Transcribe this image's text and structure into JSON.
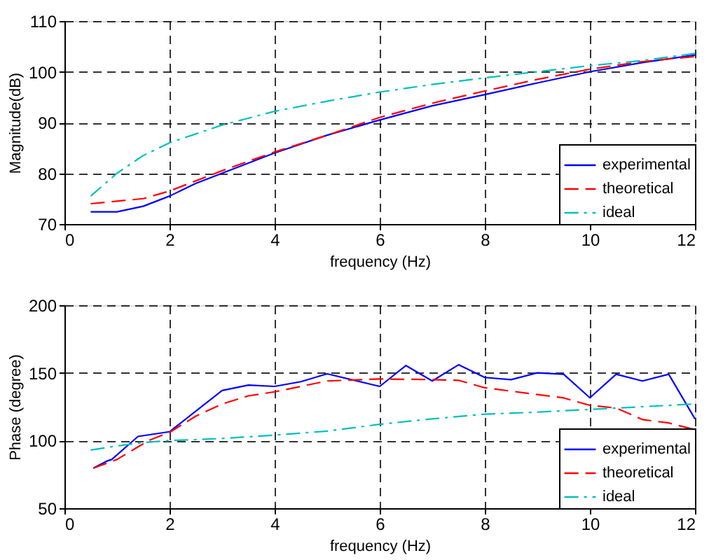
{
  "chart_data": [
    {
      "type": "line",
      "ylabel": "Magnitude(dB)",
      "xlabel": "frequency (Hz)",
      "xlim": [
        0,
        12
      ],
      "xticks": [
        0,
        2,
        4,
        6,
        8,
        10,
        12
      ],
      "ylim": [
        70,
        110
      ],
      "yticks": [
        70,
        80,
        90,
        100,
        110
      ],
      "grid": true,
      "legend": "bottom right",
      "marker": "none",
      "series": [
        {
          "name": "experimental",
          "color": "#0000ff",
          "line_style": "solid",
          "x": [
            0.5,
            1,
            1.5,
            2,
            2.5,
            3,
            4,
            5,
            6,
            7,
            8,
            9,
            10,
            11,
            12
          ],
          "values": [
            72.4,
            72.4,
            73.5,
            75.5,
            78,
            80,
            84,
            87.5,
            90.5,
            93.3,
            95.5,
            97.8,
            100,
            101.8,
            103.3
          ]
        },
        {
          "name": "theoretical",
          "color": "#ff0000",
          "line_style": "dashed",
          "x": [
            0.5,
            1,
            1.5,
            2,
            2.5,
            3,
            4,
            5,
            6,
            7,
            8,
            9,
            10,
            11,
            12
          ],
          "values": [
            74,
            74.5,
            75,
            76.5,
            78.5,
            80.5,
            84.2,
            87.5,
            91,
            93.8,
            96.2,
            98.5,
            100.5,
            102,
            103
          ]
        },
        {
          "name": "ideal",
          "color": "#00bfbf",
          "line_style": "dashdot",
          "x": [
            0.5,
            1,
            1.5,
            2,
            3,
            4,
            5,
            6,
            7,
            8,
            9,
            10,
            11,
            12
          ],
          "values": [
            75.5,
            80,
            83.5,
            86,
            89.5,
            92.2,
            94.2,
            96,
            97.5,
            98.8,
            100,
            101.2,
            102.2,
            103.6
          ]
        }
      ]
    },
    {
      "type": "line",
      "ylabel": "Phase (degree)",
      "xlabel": "frequency (Hz)",
      "xlim": [
        0,
        12
      ],
      "xticks": [
        0,
        2,
        4,
        6,
        8,
        10,
        12
      ],
      "ylim": [
        50,
        200
      ],
      "yticks": [
        50,
        100,
        150,
        200
      ],
      "grid": true,
      "legend": "bottom right",
      "marker": "none",
      "series": [
        {
          "name": "experimental",
          "color": "#0000ff",
          "line_style": "solid",
          "x": [
            0.55,
            0.8,
            0.9,
            1.4,
            2,
            3,
            3.5,
            4,
            4.5,
            5,
            6,
            6.5,
            7,
            7.5,
            8,
            8.5,
            9,
            9.5,
            10,
            10.5,
            11,
            11.5,
            12
          ],
          "values": [
            79.6,
            84.7,
            86,
            103,
            106.5,
            137,
            141,
            140,
            143.5,
            149.3,
            140,
            155.4,
            144,
            156,
            146.6,
            145,
            150,
            149,
            131.6,
            149,
            144,
            149,
            116
          ]
        },
        {
          "name": "theoretical",
          "color": "#ff0000",
          "line_style": "dashed",
          "x": [
            0.55,
            1,
            1.6,
            2,
            2.5,
            3,
            3.5,
            4,
            5,
            6,
            7,
            7.5,
            8,
            8.5,
            9,
            9.5,
            10,
            10.5,
            11,
            11.5,
            12
          ],
          "values": [
            79.6,
            86,
            100,
            106,
            118,
            127,
            133,
            136,
            144,
            145.5,
            145,
            144.5,
            139,
            136.5,
            134,
            131.5,
            126,
            124,
            115.5,
            113,
            108
          ]
        },
        {
          "name": "ideal",
          "color": "#00bfbf",
          "line_style": "dashdot",
          "x": [
            0.5,
            1,
            1.5,
            2,
            3,
            4,
            5,
            6,
            7,
            8,
            9,
            10,
            11,
            12
          ],
          "values": [
            93,
            96,
            98.5,
            100,
            101.5,
            104,
            107,
            112,
            116,
            119.5,
            121,
            123,
            125,
            127
          ]
        }
      ]
    }
  ]
}
